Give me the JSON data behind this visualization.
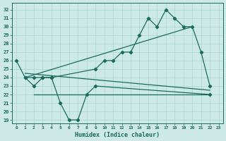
{
  "xlabel": "Humidex (Indice chaleur)",
  "bg_color": "#cce9e6",
  "line_color": "#1b6b5a",
  "grid_color": "#a8d5d0",
  "xlim": [
    -0.5,
    23.5
  ],
  "ylim": [
    18.6,
    32.8
  ],
  "yticks": [
    19,
    20,
    21,
    22,
    23,
    24,
    25,
    26,
    27,
    28,
    29,
    30,
    31,
    32
  ],
  "xticks": [
    0,
    1,
    2,
    3,
    4,
    5,
    6,
    7,
    8,
    9,
    10,
    11,
    12,
    13,
    14,
    15,
    16,
    17,
    18,
    19,
    20,
    21,
    22,
    23
  ],
  "series_top_x": [
    0,
    1,
    2,
    3,
    4,
    9,
    10,
    11,
    12,
    13,
    14,
    15,
    16,
    17,
    18,
    19,
    20,
    21,
    22
  ],
  "series_top_y": [
    26,
    24,
    24,
    24,
    24,
    25,
    26,
    26,
    27,
    27,
    29,
    31,
    30,
    32,
    31,
    30,
    30,
    27,
    23
  ],
  "series_bot_x": [
    1,
    2,
    3,
    4,
    5,
    6,
    7,
    8,
    9,
    22
  ],
  "series_bot_y": [
    24,
    23,
    24,
    24,
    21,
    19,
    19,
    22,
    23,
    22
  ],
  "hline_x": [
    2,
    22
  ],
  "hline_y": [
    22,
    22
  ],
  "trend1_x": [
    1,
    20
  ],
  "trend1_y": [
    24,
    30
  ],
  "trend2_x": [
    1,
    22
  ],
  "trend2_y": [
    24.5,
    22.5
  ]
}
